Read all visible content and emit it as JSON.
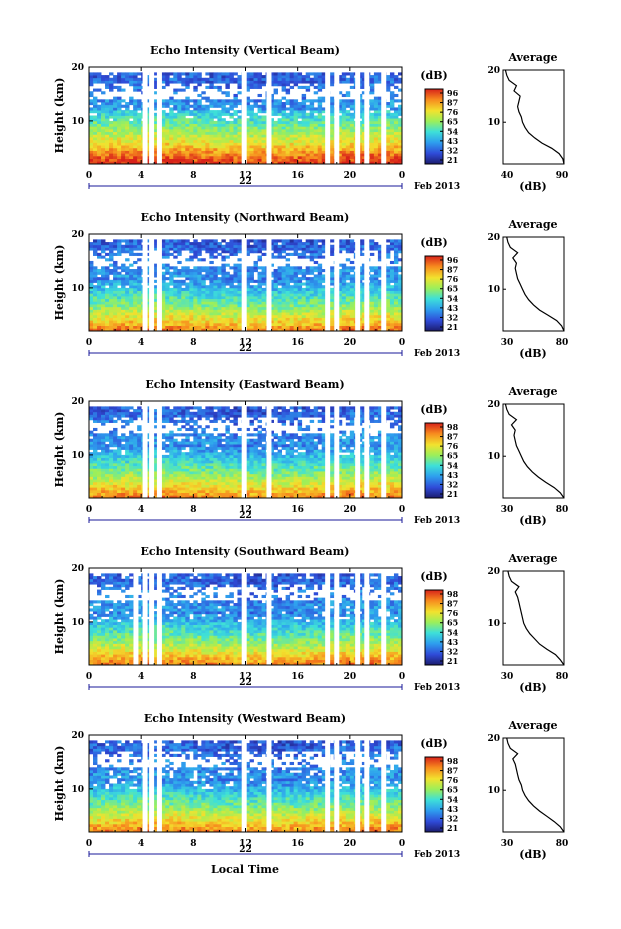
{
  "chart_data": [
    {
      "type": "heatmap",
      "title": "Echo Intensity (Vertical Beam)",
      "ylabel": "Height (km)",
      "x_ticks": [
        "0",
        "4",
        "8",
        "12",
        "16",
        "20",
        "0"
      ],
      "y_ticks": [
        "20",
        "10"
      ],
      "date_center": "22",
      "date_right": "Feb 2013",
      "colorbar": {
        "label": "(dB)",
        "ticks": [
          "96",
          "87",
          "76",
          "65",
          "54",
          "43",
          "32",
          "21"
        ]
      },
      "profile": {
        "title": "Average",
        "xlabel": "(dB)",
        "x_ticks": [
          "40",
          "90"
        ],
        "y_ticks": [
          "20",
          "10"
        ],
        "xlim": [
          40,
          90
        ],
        "heights": [
          2,
          3,
          4,
          5,
          6,
          7,
          8,
          9,
          10,
          11,
          12,
          13,
          14,
          15,
          16,
          17,
          18,
          19,
          20
        ],
        "values": [
          90,
          89,
          86,
          80,
          72,
          66,
          61,
          58,
          56,
          55,
          53,
          52,
          53,
          54,
          49,
          51,
          45,
          43,
          42
        ]
      },
      "gaps_hours": [
        4.3,
        4.8,
        5.4,
        11.9,
        13.8,
        18.3,
        19.0,
        20.6,
        21.3,
        22.6
      ]
    },
    {
      "type": "heatmap",
      "title": "Echo Intensity (Northward Beam)",
      "ylabel": "Height (km)",
      "x_ticks": [
        "0",
        "4",
        "8",
        "12",
        "16",
        "20",
        "0"
      ],
      "y_ticks": [
        "20",
        "10"
      ],
      "date_center": "22",
      "date_right": "Feb 2013",
      "colorbar": {
        "label": "(dB)",
        "ticks": [
          "96",
          "87",
          "76",
          "65",
          "54",
          "43",
          "32",
          "21"
        ]
      },
      "profile": {
        "title": "Average",
        "xlabel": "(dB)",
        "x_ticks": [
          "30",
          "80"
        ],
        "y_ticks": [
          "20",
          "10"
        ],
        "xlim": [
          30,
          80
        ],
        "heights": [
          2,
          3,
          4,
          5,
          6,
          7,
          8,
          9,
          10,
          11,
          12,
          13,
          14,
          15,
          16,
          17,
          18,
          19,
          20
        ],
        "values": [
          80,
          78,
          74,
          67,
          60,
          55,
          51,
          48,
          46,
          44,
          42,
          41,
          40,
          41,
          38,
          42,
          36,
          34,
          33
        ]
      },
      "gaps_hours": [
        4.3,
        4.8,
        5.4,
        11.9,
        13.8,
        18.3,
        19.0,
        20.6,
        21.3,
        22.6
      ]
    },
    {
      "type": "heatmap",
      "title": "Echo Intensity (Eastward Beam)",
      "ylabel": "Height (km)",
      "x_ticks": [
        "0",
        "4",
        "8",
        "12",
        "16",
        "20",
        "0"
      ],
      "y_ticks": [
        "20",
        "10"
      ],
      "date_center": "22",
      "date_right": "Feb 2013",
      "colorbar": {
        "label": "(dB)",
        "ticks": [
          "98",
          "87",
          "76",
          "65",
          "54",
          "43",
          "32",
          "21"
        ]
      },
      "profile": {
        "title": "Average",
        "xlabel": "(dB)",
        "x_ticks": [
          "30",
          "80"
        ],
        "y_ticks": [
          "20",
          "10"
        ],
        "xlim": [
          30,
          80
        ],
        "heights": [
          2,
          3,
          4,
          5,
          6,
          7,
          8,
          9,
          10,
          11,
          12,
          13,
          14,
          15,
          16,
          17,
          18,
          19,
          20
        ],
        "values": [
          80,
          77,
          72,
          65,
          59,
          54,
          50,
          47,
          45,
          43,
          41,
          40,
          39,
          40,
          37,
          41,
          35,
          33,
          32
        ]
      },
      "gaps_hours": [
        4.3,
        4.8,
        5.4,
        11.9,
        13.8,
        18.3,
        19.0,
        20.6,
        21.3,
        22.6
      ]
    },
    {
      "type": "heatmap",
      "title": "Echo Intensity (Southward Beam)",
      "ylabel": "Height (km)",
      "x_ticks": [
        "0",
        "4",
        "8",
        "12",
        "16",
        "20",
        "0"
      ],
      "y_ticks": [
        "20",
        "10"
      ],
      "date_center": "22",
      "date_right": "Feb 2013",
      "colorbar": {
        "label": "(dB)",
        "ticks": [
          "98",
          "87",
          "76",
          "65",
          "54",
          "43",
          "32",
          "21"
        ]
      },
      "profile": {
        "title": "Average",
        "xlabel": "(dB)",
        "x_ticks": [
          "30",
          "80"
        ],
        "y_ticks": [
          "20",
          "10"
        ],
        "xlim": [
          30,
          80
        ],
        "heights": [
          2,
          3,
          4,
          5,
          6,
          7,
          8,
          9,
          10,
          11,
          12,
          13,
          14,
          15,
          16,
          17,
          18,
          19,
          20
        ],
        "values": [
          80,
          77,
          73,
          66,
          60,
          56,
          52,
          49,
          47,
          46,
          45,
          44,
          43,
          42,
          40,
          43,
          37,
          35,
          34
        ]
      },
      "gaps_hours": [
        3.6,
        4.3,
        4.8,
        5.4,
        11.9,
        13.8,
        18.3,
        19.0,
        20.6,
        21.3,
        22.6
      ]
    },
    {
      "type": "heatmap",
      "title": "Echo Intensity (Westward Beam)",
      "ylabel": "Height (km)",
      "x_ticks": [
        "0",
        "4",
        "8",
        "12",
        "16",
        "20",
        "0"
      ],
      "y_ticks": [
        "20",
        "10"
      ],
      "date_center": "22",
      "date_right": "Feb 2013",
      "xlabel": "Local Time",
      "colorbar": {
        "label": "(dB)",
        "ticks": [
          "98",
          "87",
          "76",
          "65",
          "54",
          "43",
          "32",
          "21"
        ]
      },
      "profile": {
        "title": "Average",
        "xlabel": "(dB)",
        "x_ticks": [
          "30",
          "80"
        ],
        "y_ticks": [
          "20",
          "10"
        ],
        "xlim": [
          30,
          80
        ],
        "heights": [
          2,
          3,
          4,
          5,
          6,
          7,
          8,
          9,
          10,
          11,
          12,
          13,
          14,
          15,
          16,
          17,
          18,
          19,
          20
        ],
        "values": [
          80,
          77,
          72,
          66,
          60,
          55,
          51,
          48,
          46,
          45,
          43,
          42,
          41,
          40,
          38,
          42,
          36,
          34,
          33
        ]
      },
      "gaps_hours": [
        4.3,
        4.8,
        5.4,
        11.9,
        13.8,
        18.3,
        19.0,
        20.6,
        21.3,
        22.6
      ]
    }
  ]
}
